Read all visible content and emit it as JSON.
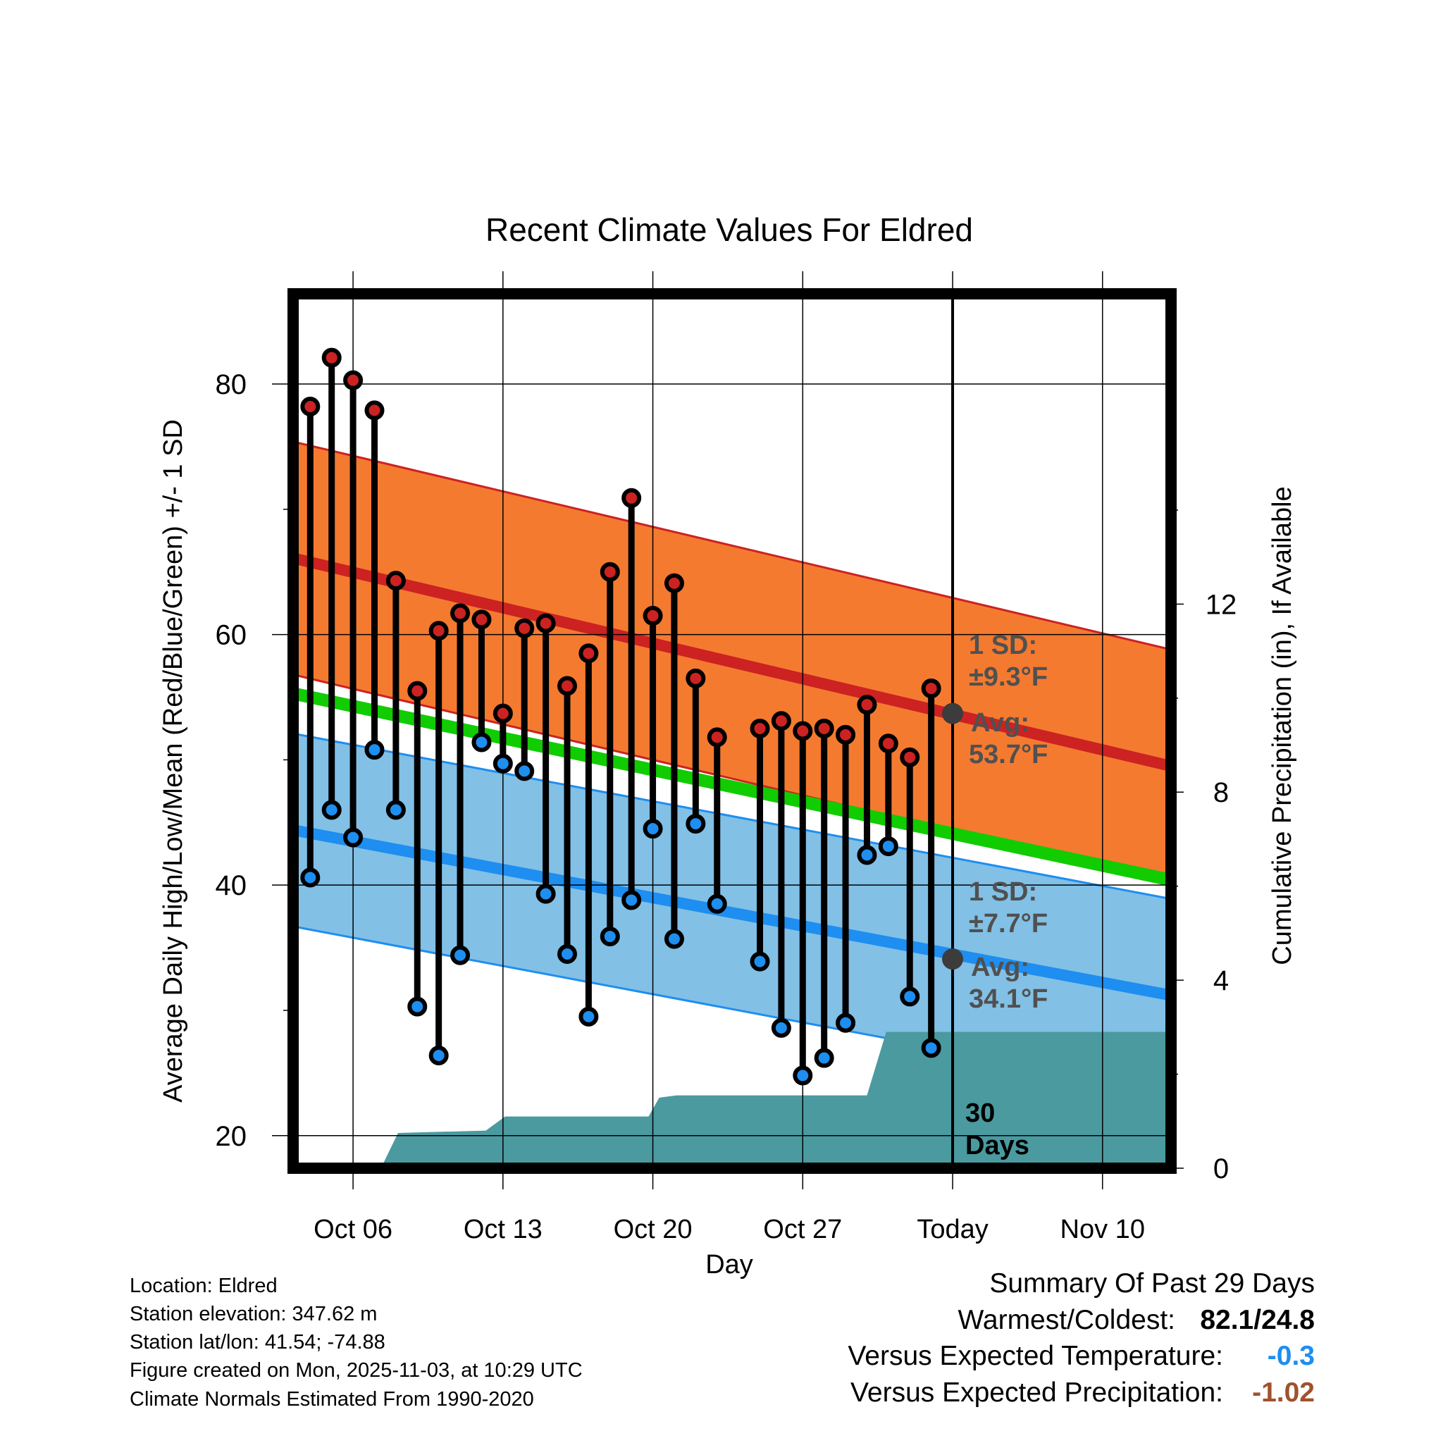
{
  "chart_data": {
    "type": "line",
    "title": "Recent Climate Values For Eldred",
    "xlabel": "Day",
    "ylabel": "Average Daily High/Low/Mean (Red/Blue/Green) +/- 1 SD",
    "y2label": "Cumulative Precipitation (in), If Available",
    "ylim": [
      17.4,
      87.2
    ],
    "y2lim": [
      0,
      18.6
    ],
    "yticks": [
      20,
      40,
      60,
      80
    ],
    "y2ticks": [
      0,
      4,
      8,
      12
    ],
    "x_ticks": [
      {
        "day": 3,
        "label": "Oct 06"
      },
      {
        "day": 10,
        "label": "Oct 13"
      },
      {
        "day": 17,
        "label": "Oct 20"
      },
      {
        "day": 24,
        "label": "Oct 27"
      },
      {
        "day": 31,
        "label": "Today"
      },
      {
        "day": 38,
        "label": "Nov 10"
      }
    ],
    "xlim": [
      0.2,
      41.2
    ],
    "today_day": 31,
    "days": [
      1,
      2,
      3,
      4,
      5,
      6,
      7,
      8,
      9,
      10,
      11,
      12,
      13,
      14,
      15,
      16,
      17,
      18,
      19,
      20,
      21,
      22,
      23,
      24,
      25,
      26,
      27,
      28,
      29,
      30
    ],
    "highs": [
      78.2,
      82.1,
      80.3,
      77.9,
      64.3,
      55.5,
      60.3,
      61.7,
      61.2,
      53.7,
      60.5,
      60.9,
      55.9,
      58.5,
      65.0,
      70.9,
      61.5,
      64.1,
      56.5,
      51.8,
      null,
      52.5,
      53.1,
      52.3,
      52.5,
      52.0,
      54.4,
      51.3,
      50.2,
      55.7
    ],
    "lows": [
      40.6,
      46.0,
      43.8,
      50.8,
      46.0,
      30.3,
      26.4,
      34.4,
      51.4,
      49.7,
      49.1,
      39.3,
      34.5,
      29.5,
      35.9,
      38.8,
      44.5,
      35.7,
      44.9,
      38.5,
      null,
      33.9,
      28.6,
      24.8,
      26.2,
      29.0,
      42.4,
      43.1,
      31.1,
      27.0
    ],
    "normal_high_start": 66.1,
    "normal_high_end": 49.5,
    "high_sd": 9.3,
    "normal_low_start": 44.4,
    "normal_low_end": 31.2,
    "low_sd": 7.7,
    "normal_mean_start": 55.3,
    "normal_mean_end": 40.4,
    "precip_cumulative": [
      {
        "day": 4.3,
        "value": 0
      },
      {
        "day": 5.1,
        "value": 0.75
      },
      {
        "day": 9.2,
        "value": 0.8
      },
      {
        "day": 10.1,
        "value": 1.1
      },
      {
        "day": 16.8,
        "value": 1.1
      },
      {
        "day": 17.3,
        "value": 1.5
      },
      {
        "day": 18.1,
        "value": 1.55
      },
      {
        "day": 27.0,
        "value": 1.55
      },
      {
        "day": 27.9,
        "value": 2.9
      },
      {
        "day": 41.2,
        "value": 2.9
      }
    ],
    "annotations": {
      "high_sd_label": "1 SD:",
      "high_sd_value": "±9.3°F",
      "high_avg_label": "Avg:",
      "high_avg_value": "53.7°F",
      "low_sd_label": "1 SD:",
      "low_sd_value": "±7.7°F",
      "low_avg_label": "Avg:",
      "low_avg_value": "34.1°F",
      "high_avg": 53.7,
      "low_avg": 34.1,
      "days_label_1": "30",
      "days_label_2": "Days"
    },
    "colors": {
      "high_band": "#f47a30",
      "high_line": "#cc2222",
      "low_band": "#82c0e6",
      "low_line": "#1e8ef0",
      "mean_line": "#11cc00",
      "precip": "#4a9aa0",
      "high_dot": "#cc2222",
      "low_dot": "#1e8ef0",
      "marker_grey": "#3c3c3c",
      "annot_text": "#505050"
    }
  },
  "info": {
    "location": "Location: Eldred",
    "elevation": "Station elevation: 347.62 m",
    "latlon": "Station lat/lon: 41.54; -74.88",
    "created": "Figure created on Mon, 2025-11-03, at 10:29 UTC",
    "normals": "Climate Normals Estimated From 1990-2020"
  },
  "summary": {
    "title": "Summary Of Past 29 Days",
    "warm_cold_label": "Warmest/Coldest:",
    "warm_cold_value": "82.1/24.8",
    "temp_label": "Versus Expected Temperature:",
    "temp_value": "-0.3",
    "temp_color": "#1e8ef0",
    "precip_label": "Versus Expected Precipitation:",
    "precip_value": "-1.02",
    "precip_color": "#a0522d"
  }
}
